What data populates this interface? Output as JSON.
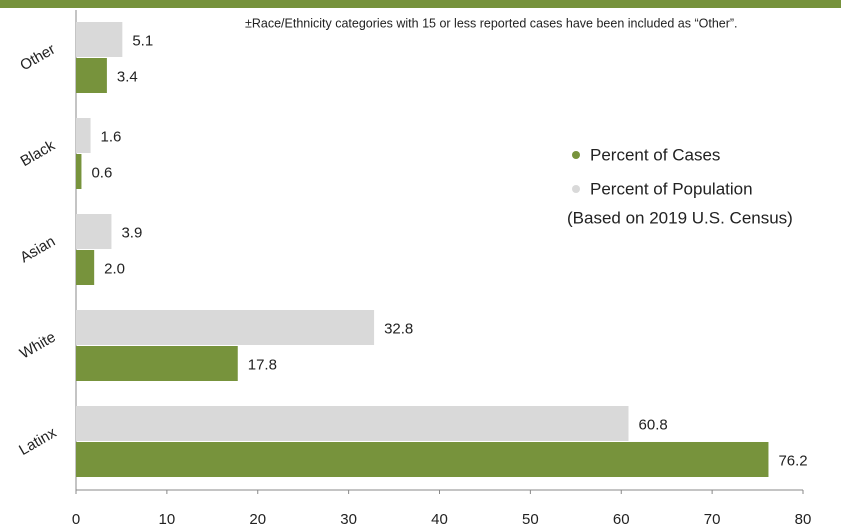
{
  "chart_data": {
    "type": "hbar",
    "footnote": "±Race/Ethnicity categories with 15 or less reported cases have been included as “Other”.",
    "categories": [
      "Other",
      "Black",
      "Asian",
      "White",
      "Latinx"
    ],
    "series": [
      {
        "name": "Percent of Cases",
        "color": "#77933c",
        "values": [
          3.4,
          0.6,
          2.0,
          17.8,
          76.2
        ],
        "value_labels": [
          "3.4",
          "0.6",
          "2.0",
          "17.8",
          "76.2"
        ]
      },
      {
        "name": "Percent of Population",
        "color": "#d9d9d9",
        "values": [
          5.1,
          1.6,
          3.9,
          32.8,
          60.8
        ],
        "value_labels": [
          "5.1",
          "1.6",
          "3.9",
          "32.8",
          "60.8"
        ]
      }
    ],
    "legend_note": "(Based on 2019 U.S. Census)",
    "xlim": [
      0,
      80
    ],
    "xticks": [
      0,
      10,
      20,
      30,
      40,
      50,
      60,
      70,
      80
    ],
    "grid": false
  }
}
